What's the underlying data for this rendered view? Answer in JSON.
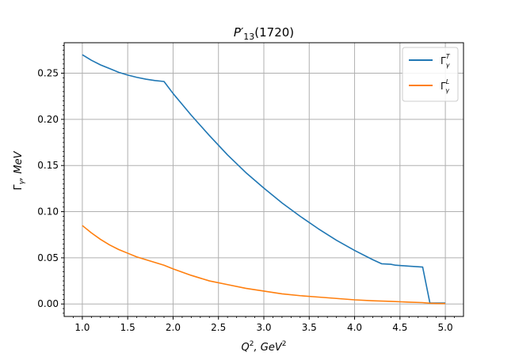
{
  "chart_data": {
    "type": "line",
    "title": {
      "base": "P′",
      "sub": "13",
      "tail": "(1720)"
    },
    "xlabel": {
      "base": "Q",
      "sup": "2",
      "tail": ", GeV",
      "sup2": "2"
    },
    "ylabel": {
      "base": "Γ",
      "sub": "γ",
      "tail": ", MeV"
    },
    "xlim": [
      0.8,
      5.2
    ],
    "ylim": [
      -0.0135,
      0.283
    ],
    "xticks": [
      1.0,
      1.5,
      2.0,
      2.5,
      3.0,
      3.5,
      4.0,
      4.5,
      5.0
    ],
    "xtick_labels": [
      "1.0",
      "1.5",
      "2.0",
      "2.5",
      "3.0",
      "3.5",
      "4.0",
      "4.5",
      "5.0"
    ],
    "yticks": [
      0.0,
      0.05,
      0.1,
      0.15,
      0.2,
      0.25
    ],
    "ytick_labels": [
      "0.00",
      "0.05",
      "0.10",
      "0.15",
      "0.20",
      "0.25"
    ],
    "grid": true,
    "legend_position": "top-right",
    "series": [
      {
        "name": "Γγ^T",
        "label": {
          "base": "Γ",
          "sub": "γ",
          "sup": "T"
        },
        "color": "#1f77b4",
        "x": [
          1.0,
          1.1,
          1.2,
          1.3,
          1.4,
          1.5,
          1.6,
          1.7,
          1.8,
          1.9,
          2.0,
          2.2,
          2.4,
          2.6,
          2.8,
          3.0,
          3.2,
          3.4,
          3.6,
          3.8,
          4.0,
          4.2,
          4.3,
          4.4,
          4.45,
          4.6,
          4.75,
          4.83,
          4.9,
          5.0
        ],
        "y": [
          0.27,
          0.264,
          0.259,
          0.255,
          0.251,
          0.248,
          0.2455,
          0.2435,
          0.242,
          0.241,
          0.228,
          0.2045,
          0.1825,
          0.1615,
          0.1425,
          0.1255,
          0.1095,
          0.095,
          0.0815,
          0.069,
          0.058,
          0.048,
          0.0435,
          0.043,
          0.042,
          0.041,
          0.04,
          0.001,
          0.001,
          0.001
        ]
      },
      {
        "name": "Γγ^L",
        "label": {
          "base": "Γ",
          "sub": "γ",
          "sup": "L"
        },
        "color": "#ff7f0e",
        "x": [
          1.0,
          1.1,
          1.2,
          1.3,
          1.4,
          1.5,
          1.6,
          1.7,
          1.8,
          1.9,
          2.0,
          2.2,
          2.4,
          2.6,
          2.8,
          3.0,
          3.2,
          3.4,
          3.6,
          3.8,
          4.0,
          4.2,
          4.4,
          4.6,
          4.75,
          4.83,
          4.9,
          5.0
        ],
        "y": [
          0.085,
          0.077,
          0.07,
          0.064,
          0.059,
          0.055,
          0.051,
          0.048,
          0.045,
          0.042,
          0.038,
          0.031,
          0.025,
          0.021,
          0.017,
          0.014,
          0.011,
          0.009,
          0.0075,
          0.006,
          0.0045,
          0.0035,
          0.0028,
          0.002,
          0.0015,
          0.0008,
          0.0006,
          0.0005
        ]
      }
    ]
  }
}
